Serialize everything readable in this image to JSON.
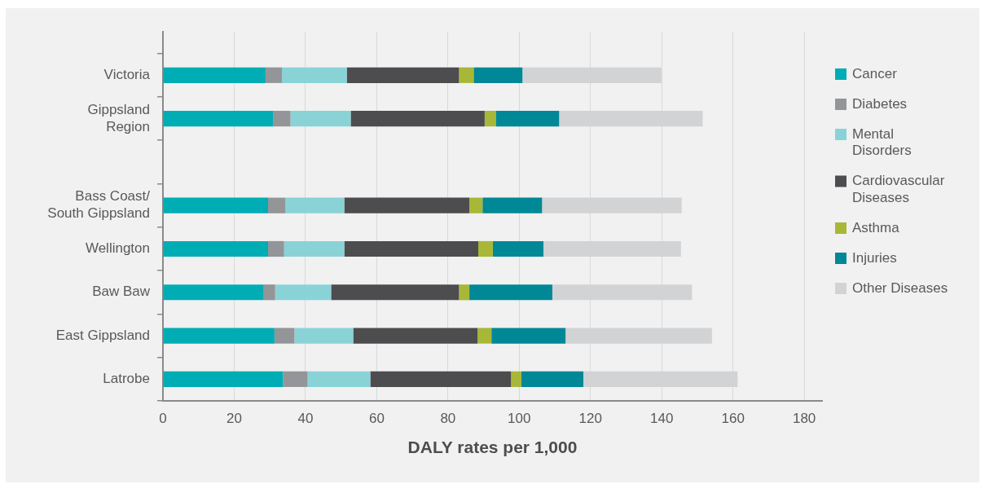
{
  "chart_data": {
    "type": "bar",
    "orientation": "horizontal",
    "stacked": true,
    "xlabel": "DALY rates per 1,000",
    "categories": [
      "Victoria",
      "Gippsland Region",
      null,
      "Bass Coast/ South Gippsland",
      "Wellington",
      "Baw Baw",
      "East Gippsland",
      "Latrobe"
    ],
    "series": [
      {
        "name": "Cancer",
        "color": "#00adb4",
        "values": [
          28.8,
          30.9,
          null,
          29.5,
          29.5,
          28.3,
          31.3,
          33.7
        ]
      },
      {
        "name": "Diabetes",
        "color": "#939598",
        "values": [
          4.6,
          4.9,
          null,
          4.9,
          4.5,
          3.2,
          5.6,
          6.9
        ]
      },
      {
        "name": "Mental Disorders",
        "color": "#89d3d7",
        "values": [
          18.2,
          16.9,
          null,
          16.5,
          16.9,
          15.7,
          16.5,
          17.6
        ]
      },
      {
        "name": "Cardiovascular Diseases",
        "color": "#4d4d4f",
        "values": [
          31.5,
          37.6,
          null,
          35.1,
          37.6,
          35.9,
          34.9,
          39.5
        ]
      },
      {
        "name": "Asthma",
        "color": "#a8b737",
        "values": [
          4.1,
          3.1,
          null,
          3.7,
          4.1,
          2.9,
          3.9,
          2.9
        ]
      },
      {
        "name": "Injuries",
        "color": "#008896",
        "values": [
          13.7,
          17.8,
          null,
          16.7,
          14.2,
          23.3,
          20.8,
          17.4
        ]
      },
      {
        "name": "Other Diseases",
        "color": "#d1d3d5",
        "values": [
          39.0,
          40.3,
          null,
          39.2,
          38.6,
          39.2,
          41.1,
          43.3
        ]
      }
    ],
    "xlim": [
      0,
      185
    ],
    "xticks": [
      0,
      20,
      40,
      60,
      80,
      100,
      120,
      140,
      160,
      180
    ],
    "grid": "x",
    "legend": "right"
  }
}
